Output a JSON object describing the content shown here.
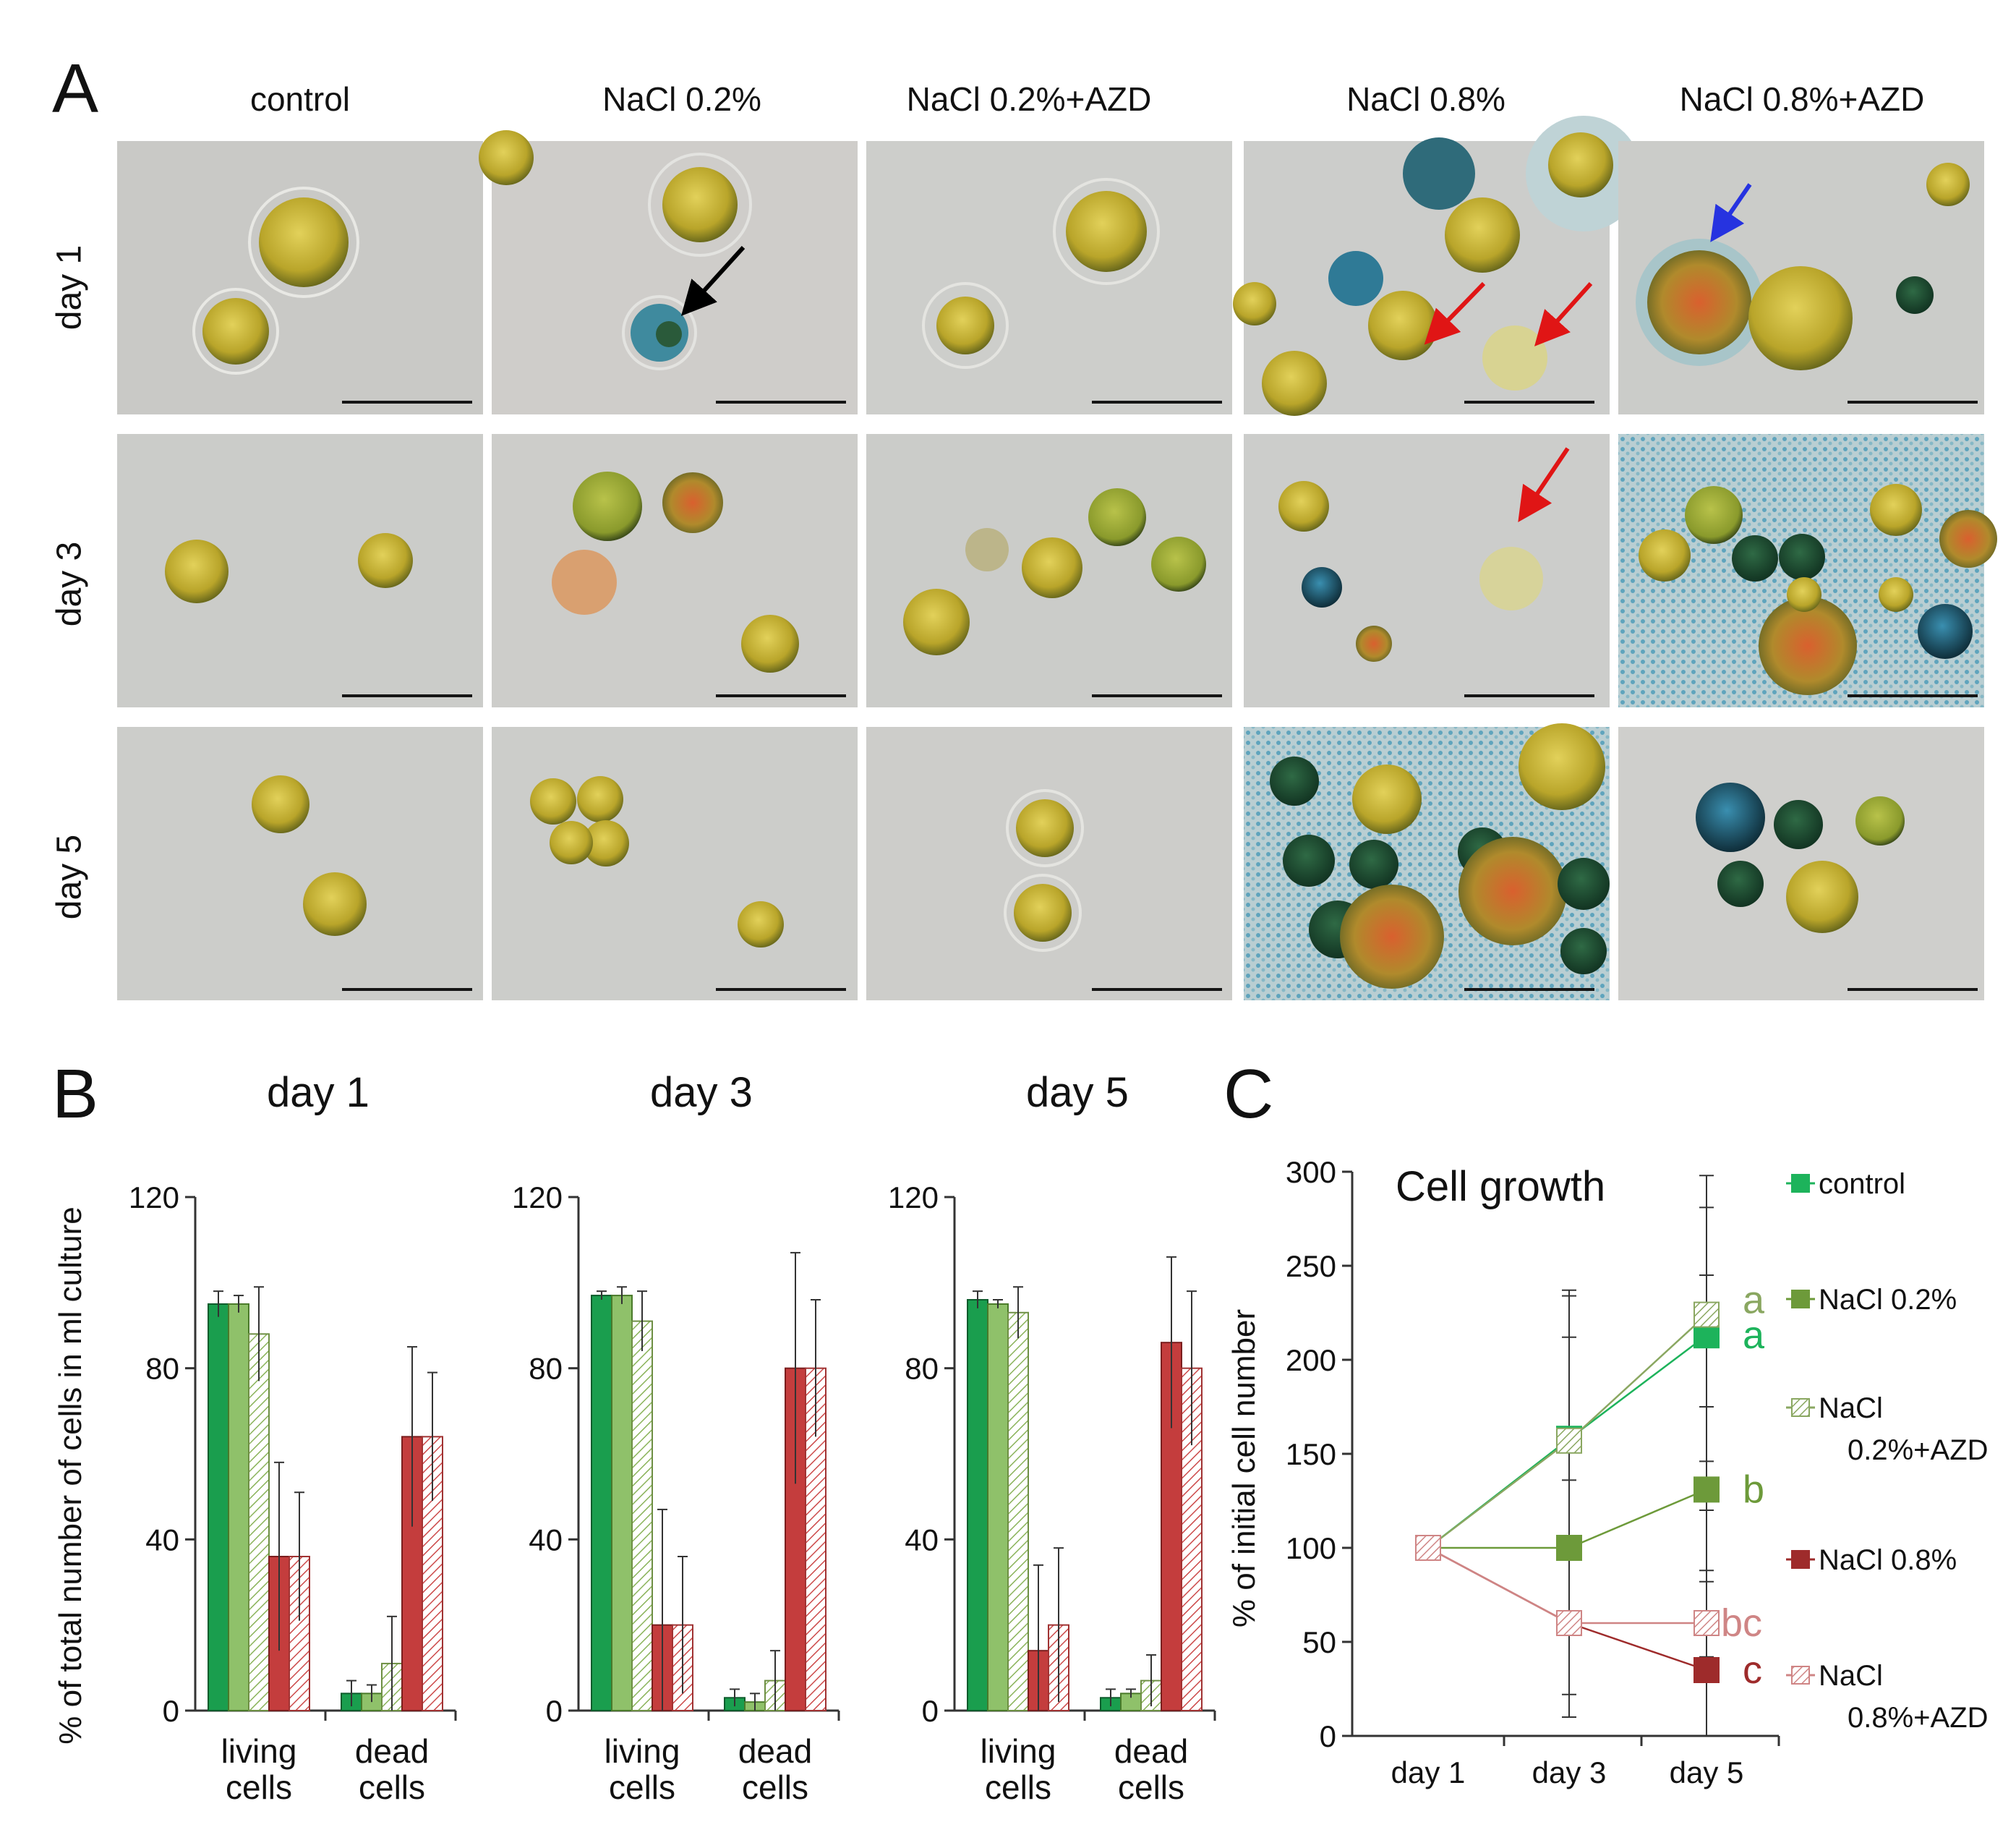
{
  "figure": {
    "panel_a_label": "A",
    "panel_b_label": "B",
    "panel_c_label": "C"
  },
  "panel_a": {
    "columns": [
      "control",
      "NaCl 0.2%",
      "NaCl 0.2%+AZD",
      "NaCl 0.8%",
      "NaCl 0.8%+AZD"
    ],
    "rows": [
      "day 1",
      "day 3",
      "day 5"
    ],
    "colors": {
      "background": "#c9cac5",
      "cell": "#b5a424",
      "blue": "#3c8aa3",
      "dark": "#1f4d33",
      "orange": "#c7772f",
      "arrow_black": "#000000",
      "arrow_red": "#e01515",
      "arrow_blue": "#2633e0"
    }
  },
  "chart_data": [
    {
      "type": "bar",
      "title": "day 1",
      "ylabel": "% of total number of cells in ml culture",
      "ylim": [
        0,
        120
      ],
      "yticks": [
        "0",
        "40",
        "80",
        "120"
      ],
      "categories": [
        "living cells",
        "dead cells"
      ],
      "category_lines": [
        [
          "living",
          "cells"
        ],
        [
          "dead",
          "cells"
        ]
      ],
      "series": [
        {
          "name": "control",
          "values": [
            95,
            4
          ],
          "err": [
            3,
            3
          ]
        },
        {
          "name": "NaCl 0.2%",
          "values": [
            95,
            4
          ],
          "err": [
            2,
            2
          ]
        },
        {
          "name": "NaCl 0.2%+AZD",
          "values": [
            88,
            11
          ],
          "err": [
            11,
            11
          ]
        },
        {
          "name": "NaCl 0.8%",
          "values": [
            36,
            64
          ],
          "err": [
            22,
            21
          ]
        },
        {
          "name": "NaCl 0.8%+AZD",
          "values": [
            36,
            64
          ],
          "err": [
            15,
            15
          ]
        }
      ]
    },
    {
      "type": "bar",
      "title": "day 3",
      "ylim": [
        0,
        120
      ],
      "yticks": [
        "0",
        "40",
        "80",
        "120"
      ],
      "categories": [
        "living cells",
        "dead cells"
      ],
      "category_lines": [
        [
          "living",
          "cells"
        ],
        [
          "dead",
          "cells"
        ]
      ],
      "series": [
        {
          "name": "control",
          "values": [
            97,
            3
          ],
          "err": [
            1,
            2
          ]
        },
        {
          "name": "NaCl 0.2%",
          "values": [
            97,
            2
          ],
          "err": [
            2,
            2
          ]
        },
        {
          "name": "NaCl 0.2%+AZD",
          "values": [
            91,
            7
          ],
          "err": [
            7,
            7
          ]
        },
        {
          "name": "NaCl 0.8%",
          "values": [
            20,
            80
          ],
          "err": [
            27,
            27
          ]
        },
        {
          "name": "NaCl 0.8%+AZD",
          "values": [
            20,
            80
          ],
          "err": [
            16,
            16
          ]
        }
      ]
    },
    {
      "type": "bar",
      "title": "day 5",
      "ylim": [
        0,
        120
      ],
      "yticks": [
        "0",
        "40",
        "80",
        "120"
      ],
      "categories": [
        "living cells",
        "dead cells"
      ],
      "category_lines": [
        [
          "living",
          "cells"
        ],
        [
          "dead",
          "cells"
        ]
      ],
      "series": [
        {
          "name": "control",
          "values": [
            96,
            3
          ],
          "err": [
            2,
            2
          ]
        },
        {
          "name": "NaCl 0.2%",
          "values": [
            95,
            4
          ],
          "err": [
            1,
            1
          ]
        },
        {
          "name": "NaCl 0.2%+AZD",
          "values": [
            93,
            7
          ],
          "err": [
            6,
            6
          ]
        },
        {
          "name": "NaCl 0.8%",
          "values": [
            14,
            86
          ],
          "err": [
            20,
            20
          ]
        },
        {
          "name": "NaCl 0.8%+AZD",
          "values": [
            20,
            80
          ],
          "err": [
            18,
            18
          ]
        }
      ]
    },
    {
      "type": "line",
      "title": "Cell growth",
      "ylabel": "% of initial cell number",
      "ylim": [
        0,
        300
      ],
      "yticks": [
        "0",
        "50",
        "100",
        "150",
        "200",
        "250",
        "300"
      ],
      "x": [
        "day 1",
        "day 3",
        "day 5"
      ],
      "series": [
        {
          "name": "control",
          "values": [
            100,
            158,
            213
          ],
          "letter": "a",
          "color": "#1db35b"
        },
        {
          "name": "NaCl 0.2%",
          "values": [
            100,
            100,
            131
          ],
          "letter": "b",
          "color": "#6d9a3a"
        },
        {
          "name": "NaCl 0.2%+AZD",
          "values": [
            100,
            157,
            224
          ],
          "letter": "a",
          "color": "#8aa761"
        },
        {
          "name": "NaCl 0.8%",
          "values": [
            100,
            60,
            35
          ],
          "letter": "c",
          "color": "#9e2b2b"
        },
        {
          "name": "NaCl 0.8%+AZD",
          "values": [
            100,
            60,
            60
          ],
          "letter": "bc",
          "color": "#cf8585"
        }
      ],
      "legend": [
        "control",
        "NaCl",
        "0.2%+AZD",
        "NaCl 0.8%",
        "0.8%+AZD",
        "NaCl 0.2%"
      ]
    }
  ]
}
